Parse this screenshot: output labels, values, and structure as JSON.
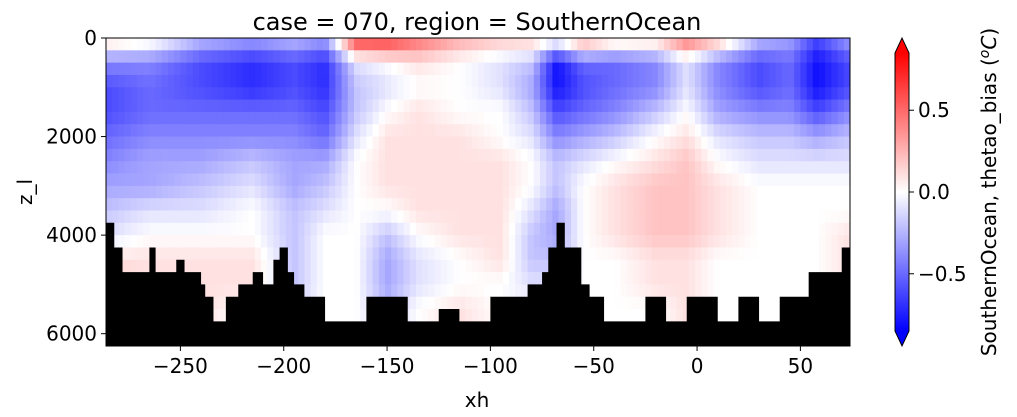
{
  "chart_data": {
    "type": "heatmap",
    "title": "case = 070, region = SouthernOcean",
    "xlabel": "xh",
    "ylabel": "z_l",
    "x_range": [
      -286,
      74
    ],
    "y_range": [
      6250,
      0
    ],
    "x_ticks": [
      -250,
      -200,
      -150,
      -100,
      -50,
      0,
      50
    ],
    "x_tick_labels": [
      "−250",
      "−200",
      "−150",
      "−100",
      "−50",
      "0",
      "50"
    ],
    "y_ticks": [
      0,
      2000,
      4000,
      6000
    ],
    "y_tick_labels": [
      "0",
      "2000",
      "4000",
      "6000"
    ],
    "colorbar": {
      "label": "SouthernOcean, thetao_bias (°C)",
      "label_text": "SouthernOcean, thetao_bias (",
      "label_unit": "C",
      "label_degree": "o",
      "label_close": ")",
      "range": [
        -0.85,
        0.85
      ],
      "ticks": [
        -0.5,
        0.0,
        0.5
      ],
      "tick_labels": [
        "−0.5",
        "0.0",
        "0.5"
      ],
      "colormap": "bwr",
      "extend": "both"
    },
    "colors": {
      "low": "#0000ff",
      "mid": "#ffffff",
      "high": "#ff0000",
      "land": "#000000"
    },
    "depth_levels": [
      0,
      250,
      500,
      750,
      1000,
      1250,
      1500,
      1750,
      2000,
      2250,
      2500,
      2750,
      3000,
      3250,
      3500,
      3750,
      4000,
      4250,
      4500,
      4750,
      5000,
      5250,
      5500,
      5750,
      6000,
      6250
    ],
    "bias_anchors": [
      {
        "x": -286,
        "v": [
          0.2,
          -0.4,
          -0.6,
          -0.6,
          -0.5,
          -0.4,
          -0.3,
          -0.2,
          -0.1,
          0.1,
          0.2,
          0.2,
          0.2
        ]
      },
      {
        "x": -265,
        "v": [
          0.1,
          -0.4,
          -0.5,
          -0.5,
          -0.4,
          -0.3,
          -0.3,
          -0.1,
          0.0,
          0.1,
          0.1,
          0.1,
          0.1
        ]
      },
      {
        "x": -240,
        "v": [
          -0.2,
          -0.6,
          -0.6,
          -0.5,
          -0.4,
          -0.3,
          -0.2,
          -0.1,
          0.0,
          0.1,
          0.1,
          0.1,
          0.0
        ]
      },
      {
        "x": -215,
        "v": [
          -0.3,
          -0.7,
          -0.7,
          -0.5,
          -0.4,
          -0.2,
          -0.1,
          0.0,
          0.0,
          0.1,
          0.1,
          0.0,
          0.0
        ]
      },
      {
        "x": -195,
        "v": [
          -0.2,
          -0.6,
          -0.6,
          -0.5,
          -0.4,
          -0.3,
          -0.3,
          -0.2,
          -0.2,
          -0.2,
          -0.2,
          -0.1,
          -0.1
        ]
      },
      {
        "x": -180,
        "v": [
          -0.3,
          -0.7,
          -0.7,
          -0.6,
          -0.5,
          -0.3,
          -0.2,
          -0.1,
          0.0,
          0.0,
          0.0,
          0.0,
          0.0
        ]
      },
      {
        "x": -165,
        "v": [
          0.7,
          -0.1,
          -0.2,
          -0.2,
          -0.1,
          0.0,
          0.0,
          0.0,
          0.0,
          0.0,
          0.0,
          0.0,
          0.0
        ]
      },
      {
        "x": -150,
        "v": [
          0.7,
          0.0,
          -0.1,
          0.0,
          0.1,
          0.1,
          0.1,
          0.0,
          -0.2,
          -0.3,
          -0.3,
          -0.2,
          -0.1
        ]
      },
      {
        "x": -135,
        "v": [
          0.5,
          0.1,
          0.0,
          0.1,
          0.1,
          0.1,
          0.1,
          0.1,
          0.0,
          -0.1,
          -0.1,
          0.0,
          0.0
        ]
      },
      {
        "x": -115,
        "v": [
          0.3,
          0.0,
          0.0,
          0.0,
          0.1,
          0.1,
          0.1,
          0.1,
          0.1,
          0.0,
          0.0,
          0.1,
          0.1
        ]
      },
      {
        "x": -95,
        "v": [
          0.2,
          -0.1,
          -0.1,
          0.0,
          0.0,
          0.1,
          0.1,
          0.1,
          0.1,
          0.1,
          0.0,
          0.0,
          0.0
        ]
      },
      {
        "x": -80,
        "v": [
          0.2,
          -0.2,
          -0.3,
          -0.2,
          -0.1,
          0.0,
          0.0,
          -0.1,
          -0.2,
          -0.2,
          -0.1,
          0.0,
          0.0
        ]
      },
      {
        "x": -68,
        "v": [
          0.1,
          -0.8,
          -0.8,
          -0.6,
          -0.4,
          -0.2,
          -0.2,
          -0.3,
          -0.3,
          -0.2,
          -0.1,
          0.0,
          0.0
        ]
      },
      {
        "x": -55,
        "v": [
          0.4,
          -0.5,
          -0.6,
          -0.5,
          -0.3,
          -0.1,
          0.0,
          0.0,
          0.0,
          0.0,
          0.0,
          0.0,
          0.0
        ]
      },
      {
        "x": -40,
        "v": [
          0.2,
          -0.5,
          -0.5,
          -0.4,
          -0.2,
          0.0,
          0.1,
          0.1,
          0.1,
          0.0,
          0.0,
          0.0,
          0.0
        ]
      },
      {
        "x": -20,
        "v": [
          0.2,
          -0.4,
          -0.4,
          -0.2,
          0.0,
          0.1,
          0.2,
          0.2,
          0.2,
          0.1,
          0.1,
          0.0,
          0.0
        ]
      },
      {
        "x": -5,
        "v": [
          0.5,
          -0.1,
          -0.1,
          0.0,
          0.1,
          0.2,
          0.2,
          0.2,
          0.2,
          0.1,
          0.1,
          0.1,
          0.1
        ]
      },
      {
        "x": 10,
        "v": [
          0.3,
          -0.4,
          -0.4,
          -0.3,
          -0.1,
          0.0,
          0.1,
          0.1,
          0.1,
          0.0,
          0.0,
          0.0,
          0.0
        ]
      },
      {
        "x": 30,
        "v": [
          -0.2,
          -0.6,
          -0.6,
          -0.4,
          -0.2,
          -0.1,
          0.0,
          0.0,
          0.0,
          0.0,
          0.0,
          0.0,
          0.0
        ]
      },
      {
        "x": 45,
        "v": [
          -0.3,
          -0.5,
          -0.5,
          -0.4,
          -0.2,
          -0.1,
          0.0,
          0.0,
          0.0,
          0.0,
          0.0,
          0.0,
          0.0
        ]
      },
      {
        "x": 58,
        "v": [
          -0.6,
          -0.8,
          -0.8,
          -0.6,
          -0.3,
          -0.1,
          0.0,
          0.0,
          0.0,
          0.0,
          0.0,
          0.0,
          0.0
        ]
      },
      {
        "x": 74,
        "v": [
          -0.3,
          -0.6,
          -0.6,
          -0.4,
          -0.2,
          -0.1,
          0.0,
          0.0,
          0.1,
          0.1,
          0.1,
          0.1,
          0.1
        ]
      }
    ],
    "bias_anchor_depths": [
      0,
      500,
      1000,
      1500,
      2000,
      2500,
      3000,
      3500,
      4000,
      4500,
      5000,
      5500,
      6000
    ],
    "bathymetry": [
      {
        "x": -286,
        "depth": 3750
      },
      {
        "x": -282,
        "depth": 4250
      },
      {
        "x": -278,
        "depth": 4750
      },
      {
        "x": -270,
        "depth": 4750
      },
      {
        "x": -265,
        "depth": 4250
      },
      {
        "x": -262,
        "depth": 4750
      },
      {
        "x": -255,
        "depth": 4750
      },
      {
        "x": -252,
        "depth": 4500
      },
      {
        "x": -248,
        "depth": 4750
      },
      {
        "x": -240,
        "depth": 5000
      },
      {
        "x": -238,
        "depth": 5250
      },
      {
        "x": -234,
        "depth": 5750
      },
      {
        "x": -228,
        "depth": 5250
      },
      {
        "x": -222,
        "depth": 5000
      },
      {
        "x": -215,
        "depth": 4750
      },
      {
        "x": -210,
        "depth": 5000
      },
      {
        "x": -205,
        "depth": 4500
      },
      {
        "x": -202,
        "depth": 4250
      },
      {
        "x": -198,
        "depth": 4750
      },
      {
        "x": -195,
        "depth": 5000
      },
      {
        "x": -190,
        "depth": 5250
      },
      {
        "x": -180,
        "depth": 5750
      },
      {
        "x": -170,
        "depth": 5750
      },
      {
        "x": -160,
        "depth": 5250
      },
      {
        "x": -150,
        "depth": 5250
      },
      {
        "x": -140,
        "depth": 5750
      },
      {
        "x": -125,
        "depth": 5500
      },
      {
        "x": -115,
        "depth": 5750
      },
      {
        "x": -100,
        "depth": 5250
      },
      {
        "x": -90,
        "depth": 5250
      },
      {
        "x": -82,
        "depth": 5000
      },
      {
        "x": -78,
        "depth": 5000
      },
      {
        "x": -75,
        "depth": 4750
      },
      {
        "x": -72,
        "depth": 4250
      },
      {
        "x": -68,
        "depth": 3750
      },
      {
        "x": -64,
        "depth": 4250
      },
      {
        "x": -60,
        "depth": 4250
      },
      {
        "x": -56,
        "depth": 5000
      },
      {
        "x": -52,
        "depth": 5250
      },
      {
        "x": -45,
        "depth": 5750
      },
      {
        "x": -30,
        "depth": 5750
      },
      {
        "x": -25,
        "depth": 5250
      },
      {
        "x": -15,
        "depth": 5750
      },
      {
        "x": -5,
        "depth": 5250
      },
      {
        "x": 0,
        "depth": 5250
      },
      {
        "x": 10,
        "depth": 5750
      },
      {
        "x": 20,
        "depth": 5250
      },
      {
        "x": 30,
        "depth": 5750
      },
      {
        "x": 40,
        "depth": 5250
      },
      {
        "x": 50,
        "depth": 5250
      },
      {
        "x": 54,
        "depth": 4750
      },
      {
        "x": 60,
        "depth": 4750
      },
      {
        "x": 65,
        "depth": 4750
      },
      {
        "x": 70,
        "depth": 4250
      },
      {
        "x": 74,
        "depth": 4250
      }
    ]
  }
}
